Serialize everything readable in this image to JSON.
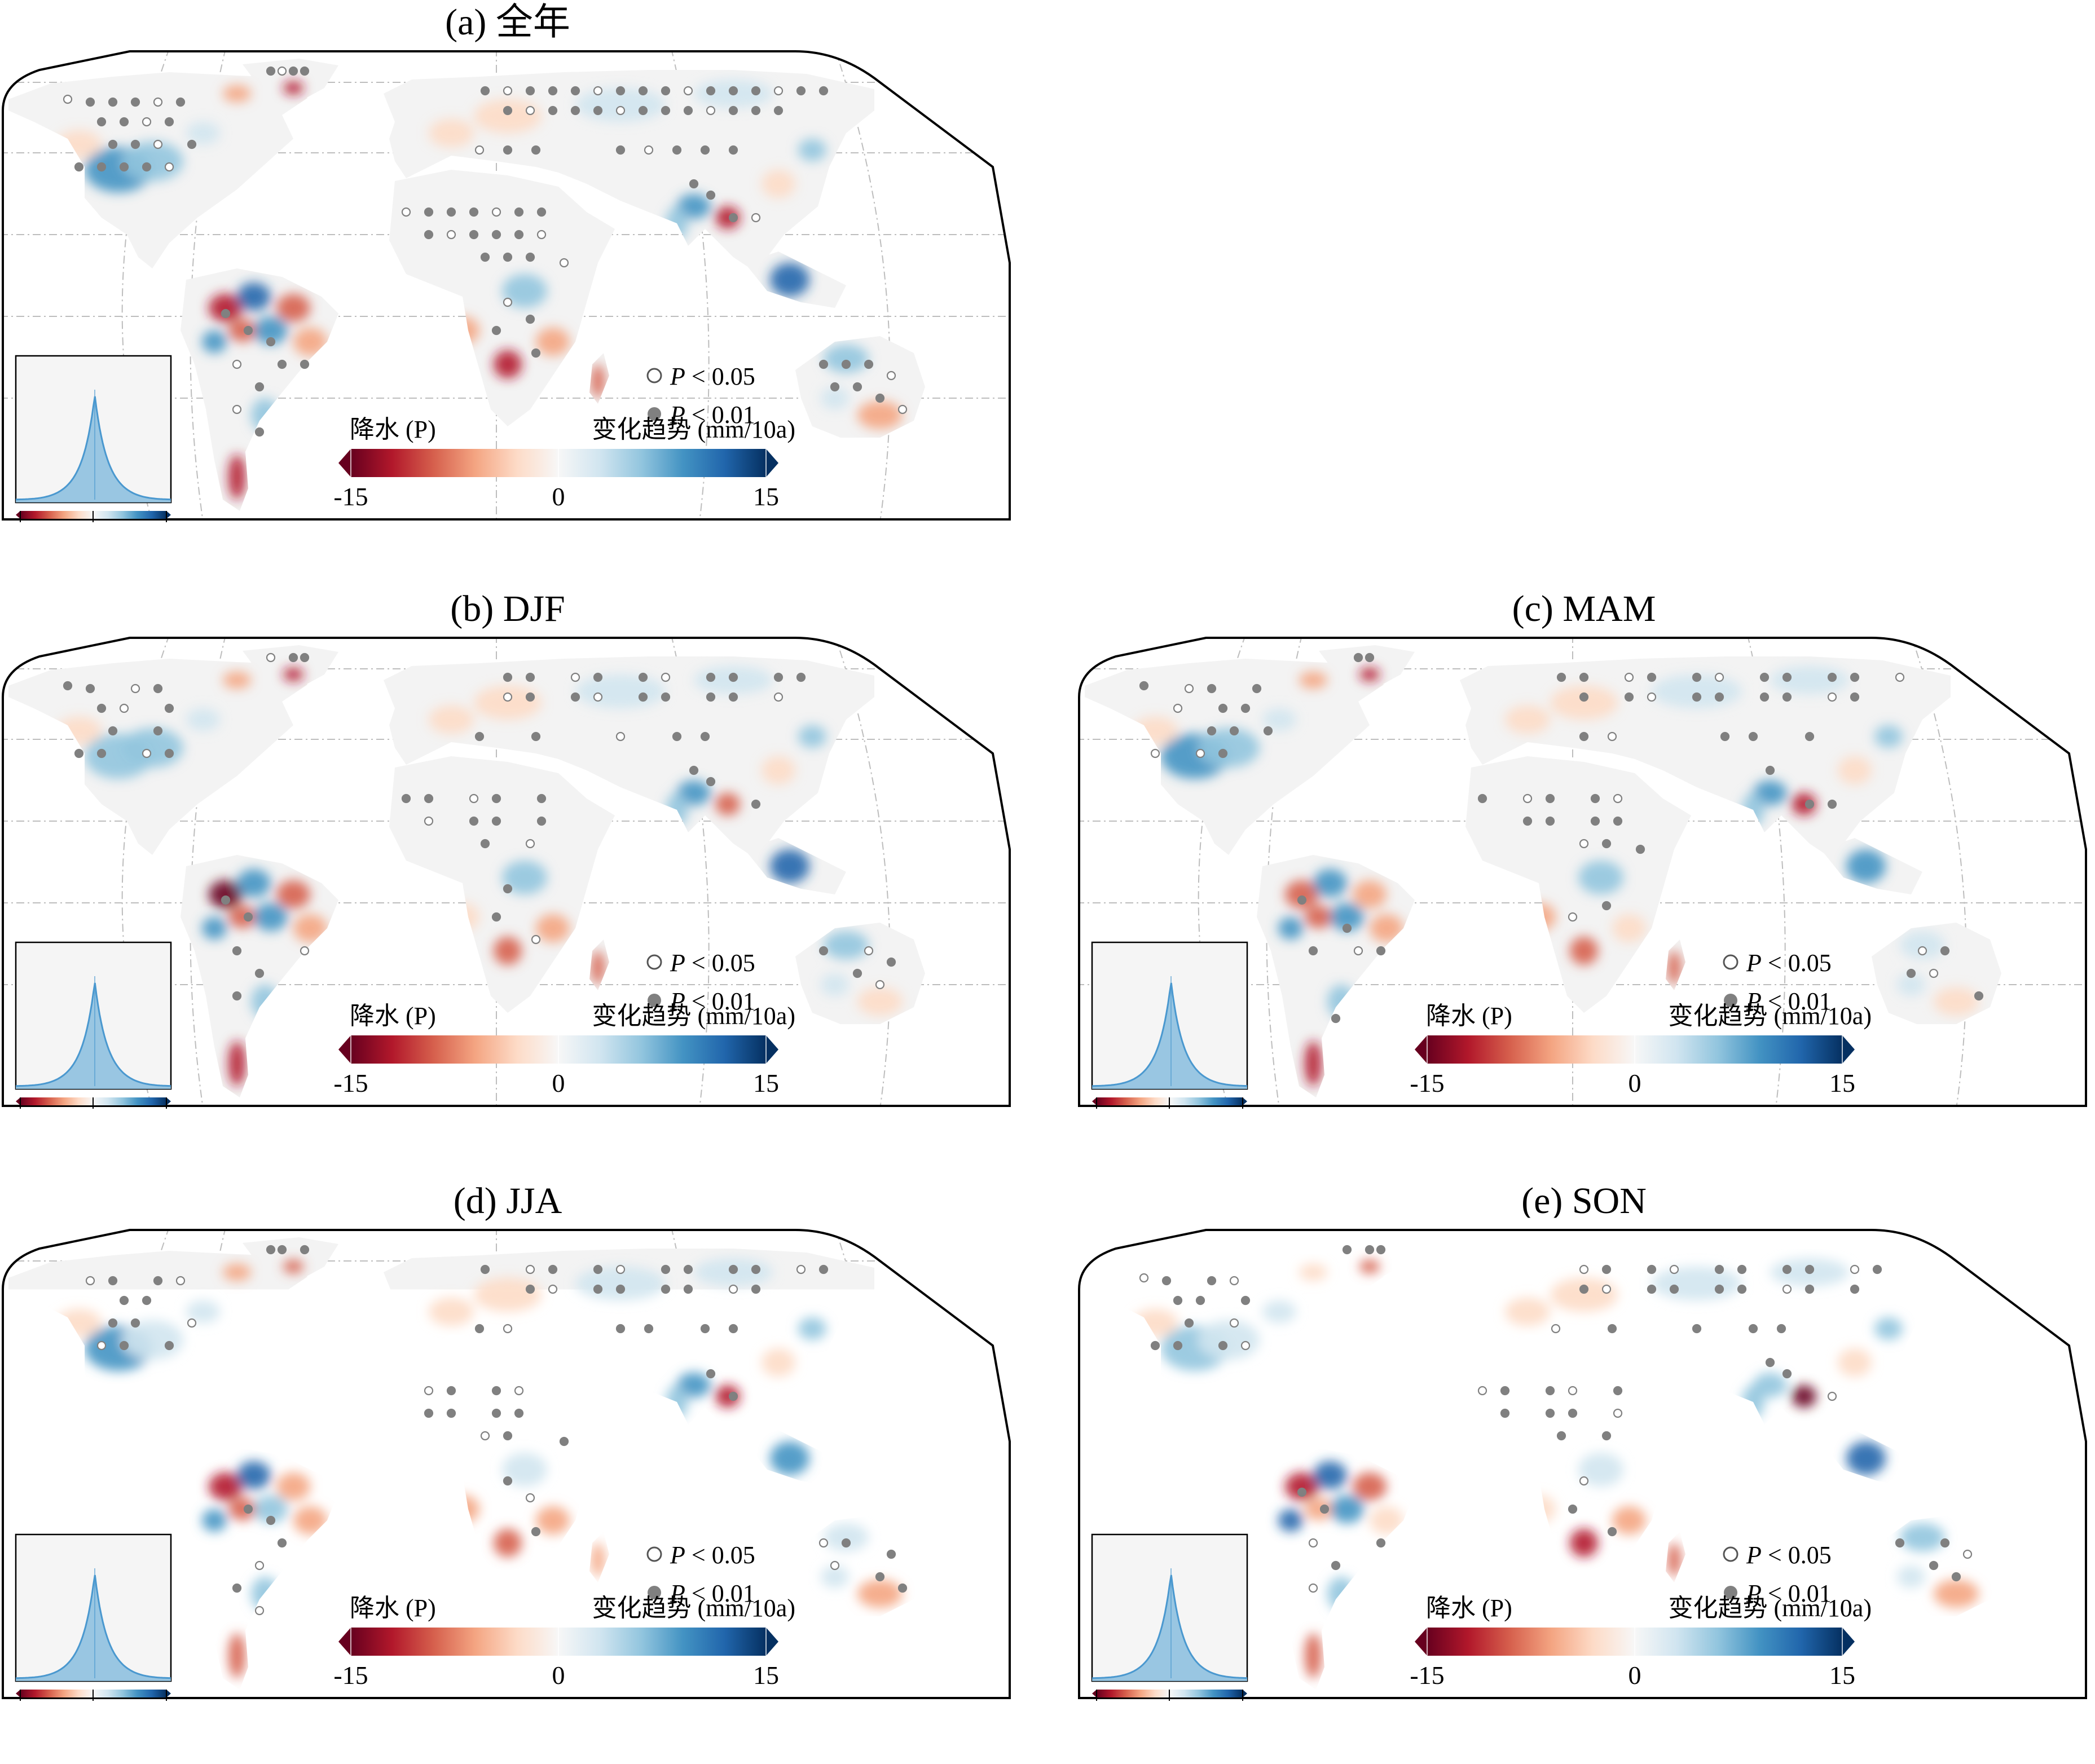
{
  "panels": [
    {
      "id": "a",
      "title": "(a) 全年"
    },
    {
      "id": "b",
      "title": "(b) DJF"
    },
    {
      "id": "c",
      "title": "(c) MAM"
    },
    {
      "id": "d",
      "title": "(d) JJA"
    },
    {
      "id": "e",
      "title": "(e) SON"
    }
  ],
  "colorbar": {
    "title": "降水 (P)",
    "units": "变化趋势 (mm/10a)",
    "min": -15,
    "mid": 0,
    "max": 15,
    "tick_labels": [
      "-15",
      "0",
      "15"
    ],
    "stops": [
      "#67001f",
      "#b2182b",
      "#d6604d",
      "#f4a582",
      "#fddbc7",
      "#f7f7f7",
      "#d1e5f0",
      "#92c5de",
      "#4393c3",
      "#2166ac",
      "#053061"
    ]
  },
  "legend": {
    "p005_var": "P",
    "p005_rest": " < 0.05",
    "p001_var": "P",
    "p001_rest": " < 0.01"
  },
  "colors": {
    "land": "#f3f3f3",
    "dot": "#808080",
    "hist_fill": "#8fc1e0",
    "hist_line": "#4a98cf",
    "inset_bg": "#f5f5f5"
  }
}
